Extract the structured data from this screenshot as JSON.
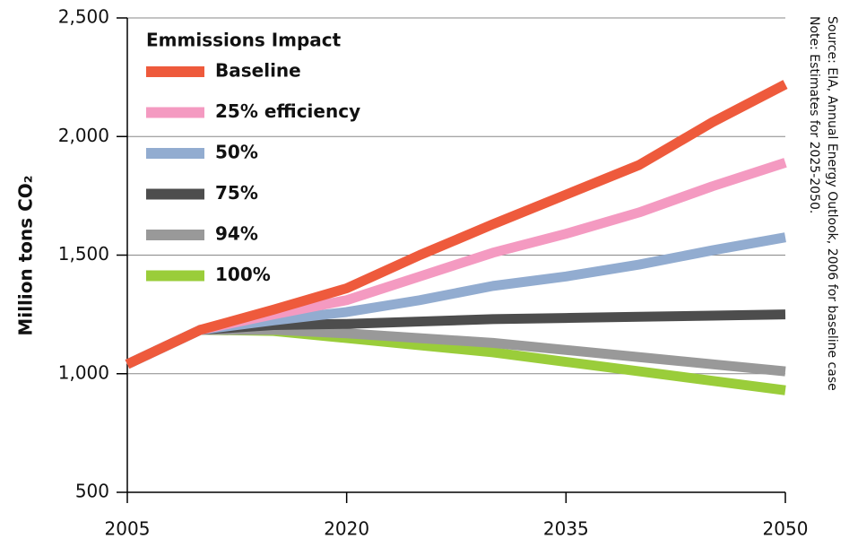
{
  "chart_data": {
    "type": "line",
    "ylabel": "Million tons CO₂",
    "legend_title": "Emmissions Impact",
    "legend": "upper left",
    "grid": true,
    "notes": [
      "Source: EIA, Annual Energy Outlook, 2006 for baseline case",
      "Note: Estimates for 2025-2050."
    ],
    "x": [
      2005,
      2010,
      2015,
      2020,
      2025,
      2030,
      2035,
      2040,
      2045,
      2050
    ],
    "xlim": [
      2005,
      2050
    ],
    "xticks": [
      2005,
      2020,
      2035,
      2050
    ],
    "ylim": [
      500,
      2500
    ],
    "yticks": [
      {
        "value": 500,
        "label": "500"
      },
      {
        "value": 1000,
        "label": "1,000"
      },
      {
        "value": 1500,
        "label": "1,500"
      },
      {
        "value": 2000,
        "label": "2,000"
      },
      {
        "value": 2500,
        "label": "2,500"
      }
    ],
    "series": [
      {
        "name": "Baseline",
        "color": "#ee5a3c",
        "values": [
          1040,
          1185,
          1270,
          1360,
          1500,
          1630,
          1755,
          1880,
          2060,
          2220
        ]
      },
      {
        "name": "25% efficiency",
        "color": "#f49ac1",
        "values": [
          1040,
          1185,
          1250,
          1310,
          1410,
          1510,
          1590,
          1680,
          1790,
          1890
        ]
      },
      {
        "name": "50%",
        "color": "#92acd0",
        "values": [
          1040,
          1185,
          1225,
          1260,
          1310,
          1370,
          1410,
          1460,
          1520,
          1575
        ]
      },
      {
        "name": "75%",
        "color": "#4d4d4d",
        "values": [
          1040,
          1185,
          1205,
          1210,
          1220,
          1230,
          1235,
          1240,
          1245,
          1250
        ]
      },
      {
        "name": "94%",
        "color": "#999999",
        "values": [
          1040,
          1185,
          1185,
          1170,
          1150,
          1130,
          1100,
          1070,
          1040,
          1010
        ]
      },
      {
        "name": "100%",
        "color": "#9acd3a",
        "values": [
          1040,
          1185,
          1180,
          1150,
          1120,
          1090,
          1050,
          1010,
          970,
          930
        ]
      }
    ]
  }
}
